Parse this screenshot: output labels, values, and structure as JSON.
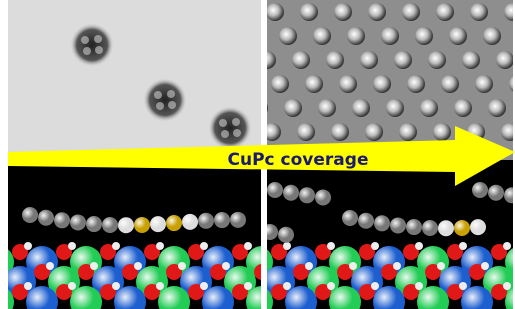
{
  "arrow": {
    "label": "CuPc coverage"
  }
}
